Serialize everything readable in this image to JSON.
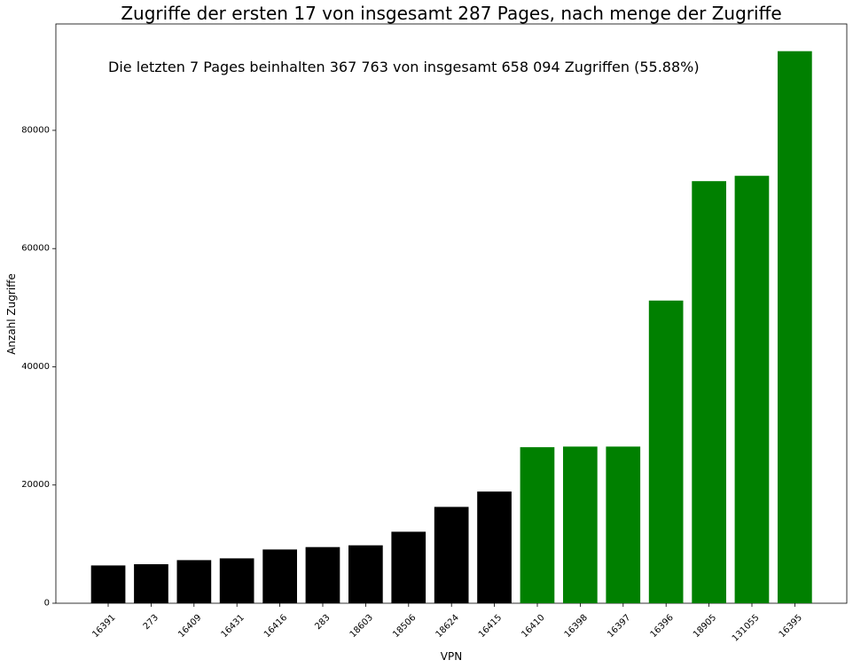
{
  "chart_data": {
    "type": "bar",
    "title": "Zugriffe der ersten 17 von insgesamt 287 Pages, nach menge der Zugriffe",
    "annotation": "Die letzten 7 Pages beinhalten 367 763 von insgesamt 658 094 Zugriffen (55.88%)",
    "xlabel": "VPN",
    "ylabel": "Anzahl Zugriffe",
    "categories": [
      "16391",
      "273",
      "16409",
      "16431",
      "16416",
      "283",
      "18603",
      "18506",
      "18624",
      "16415",
      "16410",
      "16398",
      "16397",
      "16396",
      "18905",
      "131055",
      "16395"
    ],
    "values": [
      6400,
      6600,
      7300,
      7600,
      9100,
      9500,
      9800,
      12100,
      16300,
      18900,
      26400,
      26500,
      26500,
      51200,
      71400,
      72300,
      93400
    ],
    "colors": [
      "#000000",
      "#000000",
      "#000000",
      "#000000",
      "#000000",
      "#000000",
      "#000000",
      "#000000",
      "#000000",
      "#000000",
      "#008000",
      "#008000",
      "#008000",
      "#008000",
      "#008000",
      "#008000",
      "#008000"
    ],
    "yticks": [
      0,
      20000,
      40000,
      60000,
      80000
    ],
    "ylim": [
      0,
      98000
    ],
    "grid": false,
    "legend": "none"
  }
}
